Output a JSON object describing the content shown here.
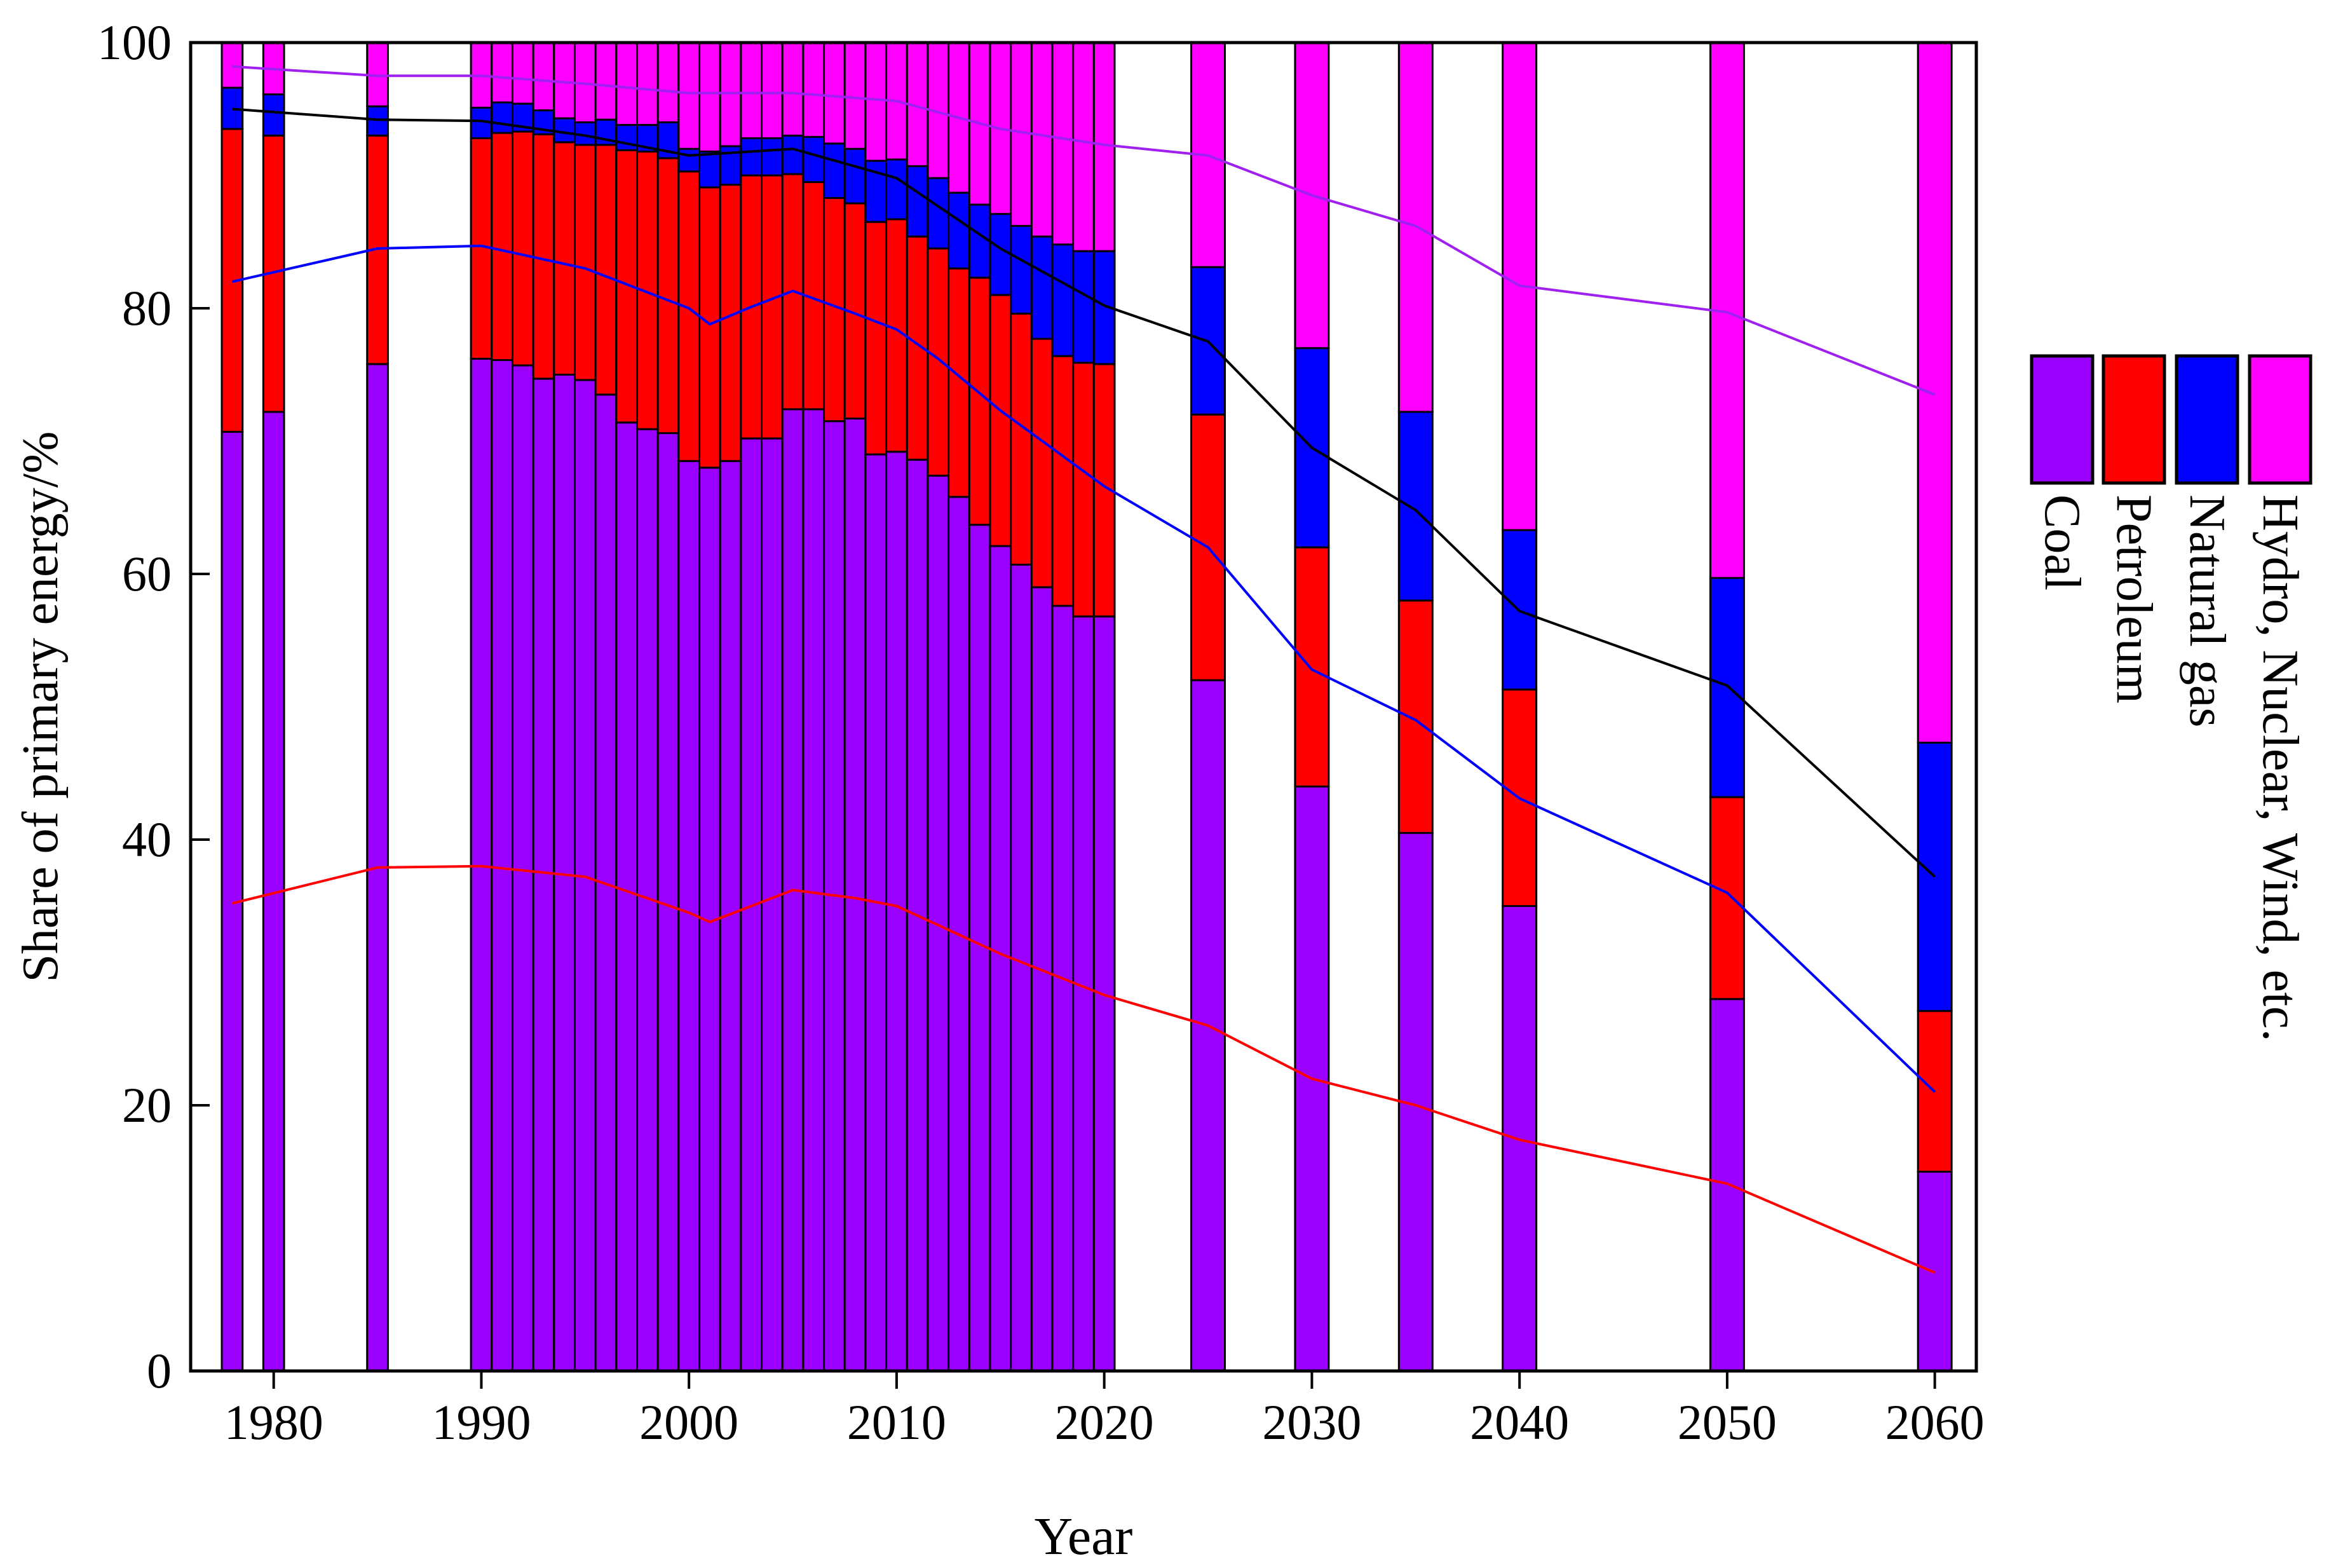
{
  "chart_data": {
    "type": "bar",
    "stacked": true,
    "title": "",
    "xlabel": "Year",
    "ylabel": "Share of primary energy/%",
    "xlim": [
      1976,
      2062
    ],
    "ylim": [
      0,
      100
    ],
    "xticks": [
      1980,
      1990,
      2000,
      2010,
      2020,
      2030,
      2040,
      2050,
      2060
    ],
    "yticks": [
      0,
      20,
      40,
      60,
      80,
      100
    ],
    "legend_position": "right",
    "series": [
      {
        "name": "Coal",
        "color": "#9900ff"
      },
      {
        "name": "Petroleum",
        "color": "#ff0000"
      },
      {
        "name": "Natural gas",
        "color": "#0000ff"
      },
      {
        "name": "Hydro, Nuclear, Wind, etc.",
        "color": "#ff00ff"
      }
    ],
    "categories": [
      1978,
      1980,
      1985,
      1990,
      1991,
      1992,
      1993,
      1994,
      1995,
      1996,
      1997,
      1998,
      1999,
      2000,
      2001,
      2002,
      2003,
      2004,
      2005,
      2006,
      2007,
      2008,
      2009,
      2010,
      2011,
      2012,
      2013,
      2014,
      2015,
      2016,
      2017,
      2018,
      2019,
      2020,
      2025,
      2030,
      2035,
      2040,
      2050,
      2060
    ],
    "cumulative_tops": {
      "Coal": [
        70.7,
        72.2,
        75.8,
        76.2,
        76.1,
        75.7,
        74.7,
        75.0,
        74.6,
        73.5,
        71.4,
        70.9,
        70.6,
        68.5,
        68.0,
        68.5,
        70.2,
        70.2,
        72.4,
        72.4,
        71.5,
        71.7,
        69.0,
        69.2,
        68.6,
        67.4,
        65.8,
        63.7,
        62.1,
        60.7,
        59.0,
        57.6,
        56.8,
        56.8,
        52.0,
        44.0,
        40.5,
        35.0,
        28.0,
        15.0
      ],
      "Petroleum": [
        93.5,
        93.0,
        93.0,
        92.8,
        93.2,
        93.3,
        93.1,
        92.5,
        92.3,
        92.3,
        91.9,
        91.8,
        91.3,
        90.3,
        89.1,
        89.3,
        90.0,
        90.0,
        90.1,
        89.5,
        88.3,
        87.9,
        86.5,
        86.7,
        85.4,
        84.5,
        83.0,
        82.3,
        81.0,
        79.6,
        77.7,
        76.4,
        75.9,
        75.8,
        72.0,
        62.0,
        58.0,
        51.3,
        43.2,
        27.1
      ],
      "Natural gas": [
        96.6,
        96.1,
        95.2,
        95.1,
        95.5,
        95.4,
        94.9,
        94.3,
        94.0,
        94.2,
        93.8,
        93.8,
        94.0,
        92.0,
        91.8,
        92.2,
        92.8,
        92.8,
        93.0,
        92.9,
        92.4,
        92.0,
        91.1,
        91.2,
        90.7,
        89.8,
        88.7,
        87.8,
        87.1,
        86.2,
        85.4,
        84.8,
        84.3,
        84.3,
        83.1,
        77.0,
        72.2,
        63.3,
        59.7,
        47.3
      ],
      "Hydro, Nuclear, Wind, etc.": [
        100,
        100,
        100,
        100,
        100,
        100,
        100,
        100,
        100,
        100,
        100,
        100,
        100,
        100,
        100,
        100,
        100,
        100,
        100,
        100,
        100,
        100,
        100,
        100,
        100,
        100,
        100,
        100,
        100,
        100,
        100,
        100,
        100,
        100,
        100,
        100,
        100,
        100,
        100,
        100
      ]
    },
    "lines": [
      {
        "name": "Line 1 (black)",
        "color": "#000000",
        "x": [
          1978,
          1985,
          1990,
          1995,
          2000,
          2005,
          2010,
          2015,
          2020,
          2025,
          2030,
          2035,
          2040,
          2050,
          2060
        ],
        "y": [
          95.0,
          94.2,
          94.1,
          93.0,
          91.5,
          92.0,
          89.8,
          84.5,
          80.2,
          77.5,
          69.5,
          64.8,
          57.2,
          51.6,
          37.2
        ]
      },
      {
        "name": "Line 2 (blue)",
        "color": "#0000ff",
        "x": [
          1978,
          1985,
          1990,
          1995,
          2000,
          2001,
          2003,
          2005,
          2008,
          2010,
          2012,
          2015,
          2020,
          2025,
          2030,
          2035,
          2040,
          2050,
          2060
        ],
        "y": [
          82.0,
          84.5,
          84.7,
          83.0,
          80.0,
          78.8,
          80.1,
          81.3,
          79.6,
          78.4,
          76.2,
          72.3,
          66.6,
          62.0,
          52.8,
          49.0,
          43.1,
          36.0,
          21.0
        ]
      },
      {
        "name": "Line 3 (red)",
        "color": "#ff0000",
        "x": [
          1978,
          1985,
          1990,
          1995,
          2000,
          2001,
          2005,
          2008,
          2010,
          2015,
          2020,
          2025,
          2030,
          2035,
          2040,
          2050,
          2060
        ],
        "y": [
          35.2,
          37.9,
          38.0,
          37.2,
          34.5,
          33.8,
          36.2,
          35.6,
          35.0,
          31.4,
          28.3,
          26.0,
          22.0,
          20.0,
          17.4,
          14.1,
          7.4
        ]
      },
      {
        "name": "Line 4 (violet)",
        "color": "#a020f0",
        "x": [
          1978,
          1985,
          1990,
          1995,
          2000,
          2005,
          2010,
          2015,
          2020,
          2025,
          2030,
          2035,
          2040,
          2050,
          2060
        ],
        "y": [
          98.2,
          97.5,
          97.5,
          96.9,
          96.2,
          96.2,
          95.6,
          93.5,
          92.3,
          91.5,
          88.5,
          86.2,
          81.7,
          79.7,
          73.5
        ]
      }
    ]
  }
}
